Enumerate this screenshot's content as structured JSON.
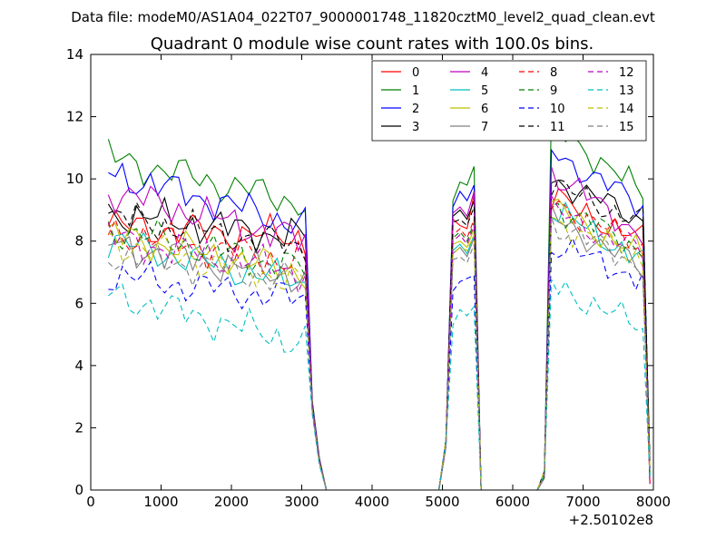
{
  "chart_data": {
    "type": "line",
    "suptitle": "Data file: modeM0/AS1A04_022T07_9000001748_11820cztM0_level2_quad_clean.evt",
    "title": "Quadrant 0 module wise count rates with 100.0s bins.",
    "xlabel": "",
    "ylabel": "",
    "x_offset_label": "+2.50102e8",
    "xlim": [
      0,
      8000
    ],
    "ylim": [
      0,
      14
    ],
    "xticks": [
      0,
      1000,
      2000,
      3000,
      4000,
      5000,
      6000,
      7000,
      8000
    ],
    "yticks": [
      0,
      2,
      4,
      6,
      8,
      10,
      12,
      14
    ],
    "legend_position": "top-right",
    "legend_columns": 4,
    "x": [
      250,
      350,
      450,
      550,
      650,
      750,
      850,
      950,
      1050,
      1150,
      1250,
      1350,
      1450,
      1550,
      1650,
      1750,
      1850,
      1950,
      2050,
      2150,
      2250,
      2350,
      2450,
      2550,
      2650,
      2750,
      2850,
      2950,
      3050,
      3150,
      3250,
      3350,
      3450,
      3550,
      3650,
      3750,
      3850,
      3950,
      4050,
      4150,
      4250,
      4350,
      4450,
      4550,
      4650,
      4750,
      4850,
      4950,
      5050,
      5150,
      5250,
      5350,
      5450,
      5550,
      5650,
      5750,
      5850,
      5950,
      6050,
      6150,
      6250,
      6350,
      6450,
      6550,
      6650,
      6750,
      6850,
      6950,
      7050,
      7150,
      7250,
      7350,
      7450,
      7550,
      7650,
      7750,
      7850,
      7950
    ],
    "seg1_x": [
      250,
      350,
      450,
      550,
      650,
      750,
      850,
      950,
      1050,
      1150,
      1250,
      1350,
      1450,
      1550,
      1650,
      1750,
      1850,
      1950,
      2050,
      2150,
      2250,
      2350,
      2450,
      2550,
      2650,
      2750,
      2850,
      2950,
      3050
    ],
    "seg2_x": [
      5150,
      5250,
      5350,
      5450
    ],
    "seg3_x": [
      6550,
      6650,
      6750,
      6850,
      6950,
      7050,
      7150,
      7250,
      7350,
      7450,
      7550,
      7650,
      7750,
      7850
    ],
    "series": [
      {
        "name": "0",
        "color": "#ff0000",
        "dash": false,
        "seg1_base": 8.5,
        "seg1_slope": -0.4,
        "seg2": [
          8.7,
          8.5,
          8.4,
          9.5
        ],
        "seg3_base": 9.4,
        "seg3_slope": -1.4
      },
      {
        "name": "1",
        "color": "#008000",
        "dash": false,
        "seg1_base": 10.7,
        "seg1_slope": -1.5,
        "seg2": [
          9.3,
          9.9,
          9.8,
          10.4
        ],
        "seg3_base": 11.8,
        "seg3_slope": -2.3
      },
      {
        "name": "2",
        "color": "#0000ff",
        "dash": false,
        "seg1_base": 10.2,
        "seg1_slope": -1.7,
        "seg2": [
          9.1,
          9.6,
          9.3,
          9.8
        ],
        "seg3_base": 10.9,
        "seg3_slope": -1.8
      },
      {
        "name": "3",
        "color": "#000000",
        "dash": false,
        "seg1_base": 8.9,
        "seg1_slope": -0.8,
        "seg2": [
          8.8,
          9.0,
          8.7,
          9.3
        ],
        "seg3_base": 10.0,
        "seg3_slope": -1.3
      },
      {
        "name": "4",
        "color": "#bf00bf",
        "dash": false,
        "seg1_base": 9.6,
        "seg1_slope": -1.6,
        "seg2": [
          8.9,
          9.1,
          8.8,
          9.6
        ],
        "seg3_base": 10.2,
        "seg3_slope": -2.0
      },
      {
        "name": "5",
        "color": "#00bfbf",
        "dash": false,
        "seg1_base": 8.0,
        "seg1_slope": -1.4,
        "seg2": [
          7.7,
          7.9,
          7.6,
          8.2
        ],
        "seg3_base": 9.0,
        "seg3_slope": -1.6
      },
      {
        "name": "6",
        "color": "#bfbf00",
        "dash": false,
        "seg1_base": 8.2,
        "seg1_slope": -1.2,
        "seg2": [
          7.9,
          8.0,
          7.8,
          8.4
        ],
        "seg3_base": 9.1,
        "seg3_slope": -1.6
      },
      {
        "name": "7",
        "color": "#808080",
        "dash": false,
        "seg1_base": 7.9,
        "seg1_slope": -1.1,
        "seg2": [
          7.6,
          7.8,
          7.5,
          8.1
        ],
        "seg3_base": 8.8,
        "seg3_slope": -1.7
      },
      {
        "name": "8",
        "color": "#ff0000",
        "dash": true,
        "seg1_base": 8.3,
        "seg1_slope": -1.0,
        "seg2": [
          8.2,
          8.4,
          8.1,
          8.7
        ],
        "seg3_base": 9.3,
        "seg3_slope": -1.5
      },
      {
        "name": "9",
        "color": "#008000",
        "dash": true,
        "seg1_base": 8.4,
        "seg1_slope": -1.3,
        "seg2": [
          8.1,
          8.3,
          8.0,
          8.6
        ],
        "seg3_base": 9.2,
        "seg3_slope": -1.5
      },
      {
        "name": "10",
        "color": "#0000ff",
        "dash": true,
        "seg1_base": 6.9,
        "seg1_slope": -0.8,
        "seg2": [
          6.4,
          6.7,
          6.8,
          6.9
        ],
        "seg3_base": 7.9,
        "seg3_slope": -1.1
      },
      {
        "name": "11",
        "color": "#000000",
        "dash": true,
        "seg1_base": 8.8,
        "seg1_slope": -1.0,
        "seg2": [
          8.6,
          8.7,
          8.5,
          9.1
        ],
        "seg3_base": 9.8,
        "seg3_slope": -1.2
      },
      {
        "name": "12",
        "color": "#bf00bf",
        "dash": true,
        "seg1_base": 8.1,
        "seg1_slope": -1.1,
        "seg2": [
          8.0,
          8.2,
          7.9,
          8.5
        ],
        "seg3_base": 9.0,
        "seg3_slope": -1.4
      },
      {
        "name": "13",
        "color": "#00bfbf",
        "dash": true,
        "seg1_base": 6.3,
        "seg1_slope": -1.6,
        "seg2": [
          5.3,
          5.8,
          5.6,
          5.9
        ],
        "seg3_base": 6.6,
        "seg3_slope": -1.4
      },
      {
        "name": "14",
        "color": "#bfbf00",
        "dash": true,
        "seg1_base": 8.0,
        "seg1_slope": -1.3,
        "seg2": [
          7.6,
          7.8,
          7.7,
          8.2
        ],
        "seg3_base": 8.7,
        "seg3_slope": -1.3
      },
      {
        "name": "15",
        "color": "#808080",
        "dash": true,
        "seg1_base": 7.6,
        "seg1_slope": -0.9,
        "seg2": [
          7.4,
          7.5,
          7.3,
          7.9
        ],
        "seg3_base": 8.6,
        "seg3_slope": -1.4
      }
    ]
  }
}
